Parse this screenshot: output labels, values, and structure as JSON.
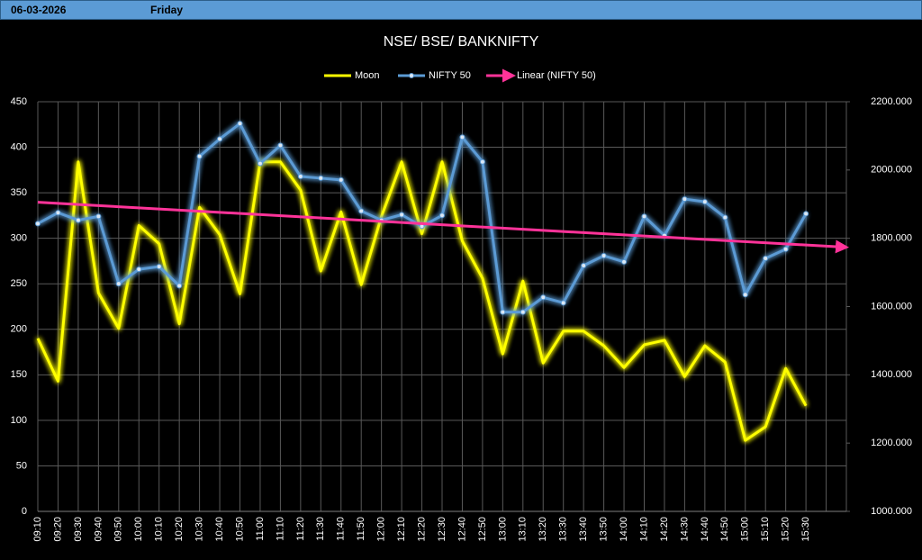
{
  "header": {
    "date": "06-03-2026",
    "day": "Friday"
  },
  "chart_data": {
    "type": "line",
    "title": "NSE/ BSE/ BANKNIFTY",
    "categories": [
      "09:10",
      "09:20",
      "09:30",
      "09:40",
      "09:50",
      "10:00",
      "10:10",
      "10:20",
      "10:30",
      "10:40",
      "10:50",
      "11:00",
      "11:10",
      "11:20",
      "11:30",
      "11:40",
      "11:50",
      "12:00",
      "12:10",
      "12:20",
      "12:30",
      "12:40",
      "12:50",
      "13:00",
      "13:10",
      "13:20",
      "13:30",
      "13:40",
      "13:50",
      "14:00",
      "14:10",
      "14:20",
      "14:30",
      "14:40",
      "14:50",
      "15:00",
      "15:10",
      "15:20",
      "15:30",
      null,
      null
    ],
    "series": [
      {
        "name": "Moon",
        "color": "#ffff00",
        "axis": "y",
        "values": [
          190,
          143,
          384,
          240,
          201,
          314,
          294,
          206,
          334,
          304,
          239,
          384,
          384,
          353,
          264,
          329,
          249,
          324,
          384,
          305,
          384,
          297,
          256,
          173,
          253,
          163,
          198,
          198,
          182,
          158,
          183,
          188,
          148,
          182,
          164,
          78,
          93,
          157,
          116,
          null,
          null
        ]
      },
      {
        "name": "NIFTY 50",
        "color": "#5b9bd5",
        "axis": "y2",
        "markers": true,
        "values": [
          1843,
          1875,
          1853,
          1864,
          1667,
          1709,
          1717,
          1661,
          2040,
          2091,
          2136,
          2019,
          2072,
          1981,
          1976,
          1971,
          1880,
          1853,
          1869,
          1835,
          1867,
          2096,
          2024,
          1584,
          1584,
          1627,
          1611,
          1720,
          1749,
          1731,
          1864,
          1808,
          1915,
          1907,
          1861,
          1635,
          1741,
          1768,
          1872,
          null,
          null
        ]
      }
    ],
    "trendline": {
      "name": "Linear (NIFTY 50)",
      "series": 1,
      "color": "#ff3399"
    },
    "ylim": [
      0,
      450
    ],
    "yticks": [
      0,
      50,
      100,
      150,
      200,
      250,
      300,
      350,
      400,
      450
    ],
    "y2lim": [
      1000,
      2200
    ],
    "y2ticks": [
      {
        "value": 1000,
        "label": "1000.000"
      },
      {
        "value": 1200,
        "label": "1200.000"
      },
      {
        "value": 1400,
        "label": "1400.000"
      },
      {
        "value": 1600,
        "label": "1600.000"
      },
      {
        "value": 1800,
        "label": "1800.000"
      },
      {
        "value": 2000,
        "label": "2000.000"
      },
      {
        "value": 2200,
        "label": "2200.000"
      }
    ],
    "grid": true,
    "legend": "top"
  }
}
